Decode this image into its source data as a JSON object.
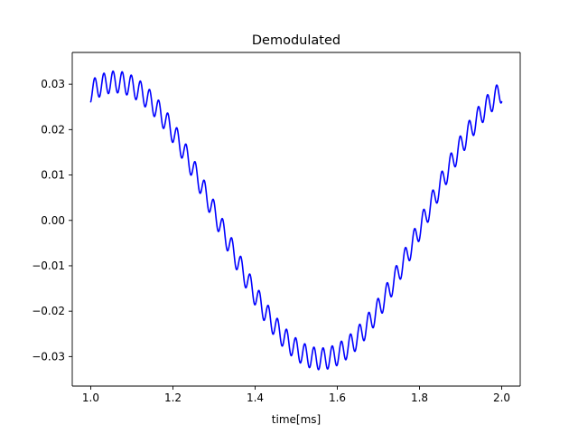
{
  "chart_data": {
    "type": "line",
    "title": "Demodulated",
    "xlabel": "time[ms]",
    "ylabel": "",
    "xlim": [
      0.955,
      2.045
    ],
    "ylim": [
      -0.0365,
      0.037
    ],
    "grid": false,
    "x_ticks": [
      1.0,
      1.2,
      1.4,
      1.6,
      1.8,
      2.0
    ],
    "x_tick_labels": [
      "1.0",
      "1.2",
      "1.4",
      "1.6",
      "1.8",
      "2.0"
    ],
    "y_ticks": [
      0.03,
      0.02,
      0.01,
      0.0,
      -0.01,
      -0.02,
      -0.03
    ],
    "y_tick_labels": [
      "0.03",
      "0.02",
      "0.01",
      "0.00",
      "−0.01",
      "−0.02",
      "−0.03"
    ],
    "series": [
      {
        "color": "#0000ff",
        "x_start": 1.0,
        "x_end": 2.0,
        "components": {
          "baseline_amplitude": 0.0305,
          "baseline_period_ms": 1.0,
          "baseline_phase_ms": 0.06,
          "ripple_amplitude": 0.0024,
          "ripple_frequency_khz": 45,
          "ripple_phase_rad": -1.2
        }
      }
    ]
  }
}
